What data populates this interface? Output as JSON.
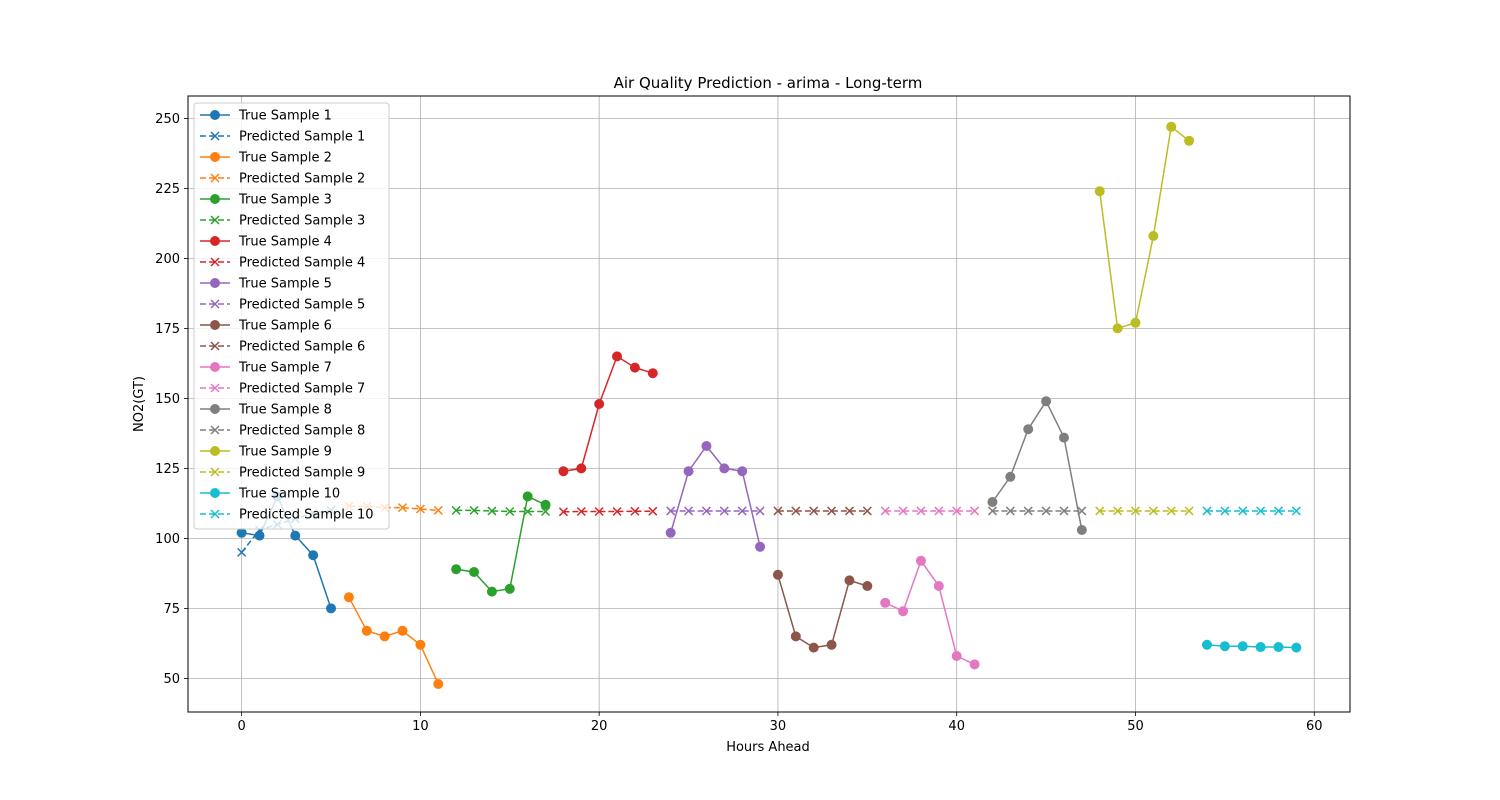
{
  "chart_data": {
    "type": "line",
    "title": "Air Quality Prediction - arima - Long-term",
    "xlabel": "Hours Ahead",
    "ylabel": "NO2(GT)",
    "xlim": [
      -3,
      62
    ],
    "ylim": [
      38,
      258
    ],
    "xticks": [
      0,
      10,
      20,
      30,
      40,
      50,
      60
    ],
    "yticks": [
      50,
      75,
      100,
      125,
      150,
      175,
      200,
      225,
      250
    ],
    "grid": true,
    "legend_position": "upper-left",
    "series": [
      {
        "name": "True Sample 1",
        "color": "#1f77b4",
        "style": "solid",
        "marker": "circle",
        "x": [
          0,
          1,
          2,
          3,
          4,
          5
        ],
        "values": [
          102,
          101,
          115,
          101,
          94,
          75
        ]
      },
      {
        "name": "Predicted Sample 1",
        "color": "#1f77b4",
        "style": "dashed",
        "marker": "x",
        "x": [
          0,
          1,
          2,
          3,
          4,
          5
        ],
        "values": [
          95,
          103,
          105,
          107,
          109,
          110
        ]
      },
      {
        "name": "True Sample 2",
        "color": "#ff7f0e",
        "style": "solid",
        "marker": "circle",
        "x": [
          6,
          7,
          8,
          9,
          10,
          11
        ],
        "values": [
          79,
          67,
          65,
          67,
          62,
          48
        ]
      },
      {
        "name": "Predicted Sample 2",
        "color": "#ff7f0e",
        "style": "dashed",
        "marker": "x",
        "x": [
          6,
          7,
          8,
          9,
          10,
          11
        ],
        "values": [
          111.5,
          111.5,
          111,
          111,
          110.5,
          110
        ]
      },
      {
        "name": "True Sample 3",
        "color": "#2ca02c",
        "style": "solid",
        "marker": "circle",
        "x": [
          12,
          13,
          14,
          15,
          16,
          17
        ],
        "values": [
          89,
          88,
          81,
          82,
          115,
          112
        ]
      },
      {
        "name": "Predicted Sample 3",
        "color": "#2ca02c",
        "style": "dashed",
        "marker": "x",
        "x": [
          12,
          13,
          14,
          15,
          16,
          17
        ],
        "values": [
          110,
          110,
          109.8,
          109.6,
          109.6,
          109.6
        ]
      },
      {
        "name": "True Sample 4",
        "color": "#d62728",
        "style": "solid",
        "marker": "circle",
        "x": [
          18,
          19,
          20,
          21,
          22,
          23
        ],
        "values": [
          124,
          125,
          148,
          165,
          161,
          159
        ]
      },
      {
        "name": "Predicted Sample 4",
        "color": "#d62728",
        "style": "dashed",
        "marker": "x",
        "x": [
          18,
          19,
          20,
          21,
          22,
          23
        ],
        "values": [
          109.5,
          109.6,
          109.6,
          109.6,
          109.7,
          109.7
        ]
      },
      {
        "name": "True Sample 5",
        "color": "#9467bd",
        "style": "solid",
        "marker": "circle",
        "x": [
          24,
          25,
          26,
          27,
          28,
          29
        ],
        "values": [
          102,
          124,
          133,
          125,
          124,
          97
        ]
      },
      {
        "name": "Predicted Sample 5",
        "color": "#9467bd",
        "style": "dashed",
        "marker": "x",
        "x": [
          24,
          25,
          26,
          27,
          28,
          29
        ],
        "values": [
          109.8,
          109.8,
          109.8,
          109.8,
          109.8,
          109.8
        ]
      },
      {
        "name": "True Sample 6",
        "color": "#8c564b",
        "style": "solid",
        "marker": "circle",
        "x": [
          30,
          31,
          32,
          33,
          34,
          35
        ],
        "values": [
          87,
          65,
          61,
          62,
          85,
          83
        ]
      },
      {
        "name": "Predicted Sample 6",
        "color": "#8c564b",
        "style": "dashed",
        "marker": "x",
        "x": [
          30,
          31,
          32,
          33,
          34,
          35
        ],
        "values": [
          109.8,
          109.8,
          109.8,
          109.8,
          109.8,
          109.8
        ]
      },
      {
        "name": "True Sample 7",
        "color": "#e377c2",
        "style": "solid",
        "marker": "circle",
        "x": [
          36,
          37,
          38,
          39,
          40,
          41
        ],
        "values": [
          77,
          74,
          92,
          83,
          58,
          55
        ]
      },
      {
        "name": "Predicted Sample 7",
        "color": "#e377c2",
        "style": "dashed",
        "marker": "x",
        "x": [
          36,
          37,
          38,
          39,
          40,
          41
        ],
        "values": [
          109.8,
          109.8,
          109.8,
          109.8,
          109.8,
          109.8
        ]
      },
      {
        "name": "True Sample 8",
        "color": "#7f7f7f",
        "style": "solid",
        "marker": "circle",
        "x": [
          42,
          43,
          44,
          45,
          46,
          47
        ],
        "values": [
          113,
          122,
          139,
          149,
          136,
          103
        ]
      },
      {
        "name": "Predicted Sample 8",
        "color": "#7f7f7f",
        "style": "dashed",
        "marker": "x",
        "x": [
          42,
          43,
          44,
          45,
          46,
          47
        ],
        "values": [
          109.8,
          109.8,
          109.8,
          109.8,
          109.8,
          109.8
        ]
      },
      {
        "name": "True Sample 9",
        "color": "#bcbd22",
        "style": "solid",
        "marker": "circle",
        "x": [
          48,
          49,
          50,
          51,
          52,
          53
        ],
        "values": [
          224,
          175,
          177,
          208,
          247,
          242
        ]
      },
      {
        "name": "Predicted Sample 9",
        "color": "#bcbd22",
        "style": "dashed",
        "marker": "x",
        "x": [
          48,
          49,
          50,
          51,
          52,
          53
        ],
        "values": [
          109.8,
          109.8,
          109.8,
          109.8,
          109.8,
          109.8
        ]
      },
      {
        "name": "True Sample 10",
        "color": "#17becf",
        "style": "solid",
        "marker": "circle",
        "x": [
          54,
          55,
          56,
          57,
          58,
          59
        ],
        "values": [
          62,
          61.5,
          61.5,
          61.2,
          61.2,
          61
        ]
      },
      {
        "name": "Predicted Sample 10",
        "color": "#17becf",
        "style": "dashed",
        "marker": "x",
        "x": [
          54,
          55,
          56,
          57,
          58,
          59
        ],
        "values": [
          109.8,
          109.8,
          109.8,
          109.8,
          109.8,
          109.8
        ]
      }
    ]
  }
}
